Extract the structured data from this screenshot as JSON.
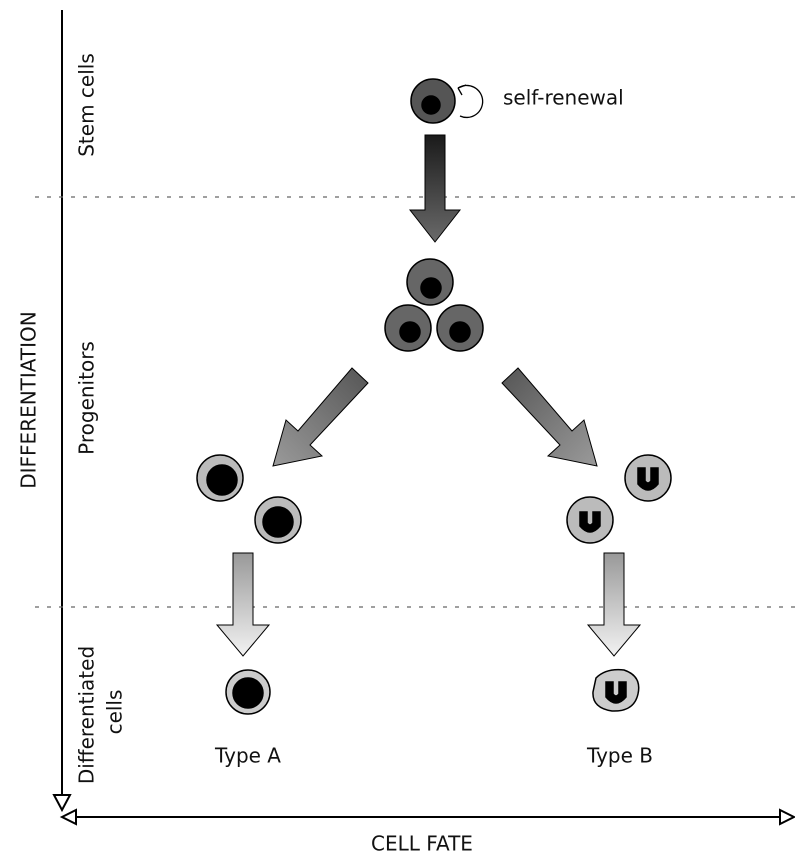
{
  "diagram": {
    "axes": {
      "y": "DIFFERENTIATION",
      "x": "CELL FATE"
    },
    "stages": {
      "stem": "Stem cells",
      "progenitors": "Progenitors",
      "differentiated": [
        "Differentiated",
        "cells"
      ]
    },
    "annotation": "self-renewal",
    "types": [
      "Type A",
      "Type B"
    ]
  }
}
